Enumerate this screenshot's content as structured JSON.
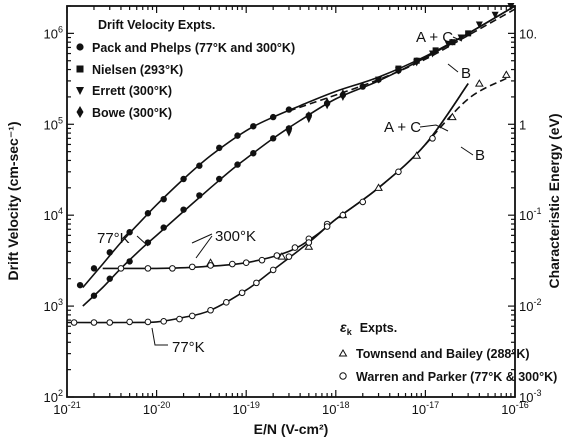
{
  "chart_data": {
    "type": "scatter",
    "x_axis": {
      "label": "E/N (V-cm²)",
      "scale": "log",
      "range": [
        1e-21,
        1e-16
      ],
      "ticks": [
        {
          "value": 1e-21,
          "mant": "10",
          "exp": "-21"
        },
        {
          "value": 1e-20,
          "mant": "10",
          "exp": "-20"
        },
        {
          "value": 1e-19,
          "mant": "10",
          "exp": "-19"
        },
        {
          "value": 1e-18,
          "mant": "10",
          "exp": "-18"
        },
        {
          "value": 1e-17,
          "mant": "10",
          "exp": "-17"
        },
        {
          "value": 1e-16,
          "mant": "10",
          "exp": "-16"
        }
      ]
    },
    "y_left": {
      "label": "Drift Velocity (cm-sec⁻¹)",
      "scale": "log",
      "range": [
        100,
        2000000
      ],
      "ticks": [
        {
          "value": 100,
          "mant": "10",
          "exp": "2"
        },
        {
          "value": 1000,
          "mant": "10",
          "exp": "3"
        },
        {
          "value": 10000,
          "mant": "10",
          "exp": "4"
        },
        {
          "value": 100000,
          "mant": "10",
          "exp": "5"
        },
        {
          "value": 1000000,
          "mant": "10",
          "exp": "6"
        }
      ]
    },
    "y_right": {
      "label": "Characteristic Energy (eV)",
      "scale": "log",
      "range": [
        0.001,
        20
      ],
      "ticks": [
        {
          "value": 0.001,
          "mant": "10",
          "exp": "-3"
        },
        {
          "value": 0.01,
          "mant": "10",
          "exp": "-2"
        },
        {
          "value": 0.1,
          "mant": "10",
          "exp": "-1"
        },
        {
          "value": 1,
          "mant": "1",
          "exp": ""
        },
        {
          "value": 10,
          "mant": "10.",
          "exp": ""
        }
      ]
    },
    "legend_drift": {
      "title": "Drift Velocity Expts.",
      "entries": [
        {
          "label": "Pack and Phelps (77°K and 300°K)",
          "marker": "circle-filled"
        },
        {
          "label": "Nielsen (293°K)",
          "marker": "square-filled"
        },
        {
          "label": "Errett (300°K)",
          "marker": "triangle-down-filled"
        },
        {
          "label": "Bowe (300°K)",
          "marker": "diamond-filled"
        }
      ]
    },
    "legend_energy": {
      "title_symbol": "ε",
      "title_sub": "k",
      "title_rest": "Expts.",
      "entries": [
        {
          "label": "Townsend and Bailey (288°K)",
          "marker": "triangle-open"
        },
        {
          "label": "Warren and Parker (77°K & 300°K)",
          "marker": "circle-open"
        }
      ]
    },
    "annotations": {
      "drift_77": "77°K",
      "drift_300": "300°K",
      "energy_77": "77°K",
      "a_plus_c_top": "A + C",
      "b_top": "B",
      "a_plus_c_mid": "A + C",
      "b_mid": "B"
    },
    "series": [
      {
        "name": "Drift velocity 77°K (A + C)",
        "axis": "left",
        "style": "solid",
        "x": [
          1.5e-21,
          2.5e-21,
          4e-21,
          7e-21,
          1e-20,
          2e-20,
          4e-20,
          1e-19,
          2e-19,
          4e-19,
          1e-18,
          3e-18,
          1e-17,
          3e-17,
          1e-16
        ],
        "y": [
          1600,
          2900,
          5000,
          9000,
          13000,
          25000,
          45000,
          85000,
          120000,
          160000,
          230000,
          330000,
          560000,
          1000000,
          2000000
        ]
      },
      {
        "name": "Drift velocity 300°K (A + C)",
        "axis": "left",
        "style": "solid",
        "x": [
          1.5e-21,
          2.5e-21,
          4e-21,
          7e-21,
          1e-20,
          2e-20,
          4e-20,
          7e-20,
          1e-19,
          2e-19,
          4e-19,
          1e-18,
          3e-18,
          1e-17,
          3e-17,
          1e-16
        ],
        "y": [
          1000,
          1600,
          2600,
          4400,
          6000,
          11000,
          20000,
          32000,
          42000,
          70000,
          110000,
          190000,
          300000,
          540000,
          1000000,
          2000000
        ]
      },
      {
        "name": "Drift velocity (B)",
        "axis": "left",
        "style": "dashed",
        "x": [
          3e-19,
          1e-18,
          3e-18,
          1e-17,
          3e-17,
          1e-16
        ],
        "y": [
          140000,
          210000,
          310000,
          520000,
          950000,
          1850000
        ]
      },
      {
        "name": "Characteristic energy 300°K",
        "axis": "right",
        "style": "solid",
        "x": [
          2.5e-21,
          1e-20,
          3e-20,
          1e-19,
          3e-19,
          6e-19,
          1e-18,
          3e-18,
          1e-17,
          3e-17
        ],
        "y": [
          0.026,
          0.026,
          0.027,
          0.03,
          0.04,
          0.06,
          0.09,
          0.2,
          0.6,
          2.8
        ]
      },
      {
        "name": "Characteristic energy 77°K",
        "axis": "right",
        "style": "solid",
        "x": [
          1e-21,
          5e-21,
          1e-20,
          2e-20,
          4e-20,
          1e-19,
          2e-19,
          5e-19,
          1e-18,
          3e-18,
          1e-17,
          3e-17
        ],
        "y": [
          0.0066,
          0.0066,
          0.0067,
          0.0075,
          0.009,
          0.015,
          0.025,
          0.05,
          0.09,
          0.2,
          0.6,
          2.8
        ]
      },
      {
        "name": "Characteristic energy (B)",
        "axis": "right",
        "style": "dashed",
        "x": [
          1e-17,
          3e-17,
          8e-17
        ],
        "y": [
          0.6,
          1.9,
          3.2
        ]
      }
    ],
    "points": {
      "pack_phelps_77": {
        "x": [
          1.4e-21,
          2e-21,
          3e-21,
          5e-21,
          8e-21,
          1.2e-20,
          2e-20,
          3e-20,
          5e-20,
          8e-20,
          1.2e-19,
          2e-19,
          3e-19
        ],
        "y": [
          1700,
          2600,
          3900,
          6500,
          10500,
          15000,
          25000,
          35000,
          55000,
          75000,
          95000,
          120000,
          145000
        ]
      },
      "pack_phelps_300": {
        "x": [
          2e-21,
          3e-21,
          5e-21,
          8e-21,
          1.2e-20,
          2e-20,
          3e-20,
          5e-20,
          8e-20,
          1.2e-19,
          2e-19,
          3e-19,
          5e-19,
          8e-19,
          1.2e-18,
          2e-18,
          3e-18,
          5e-18,
          8e-18
        ],
        "y": [
          1300,
          2000,
          3100,
          5000,
          7300,
          11500,
          16500,
          25000,
          36000,
          48000,
          70000,
          90000,
          125000,
          170000,
          210000,
          260000,
          310000,
          390000,
          500000
        ]
      },
      "nielsen": {
        "x": [
          5e-18,
          8e-18,
          1.3e-17,
          2e-17,
          3e-17
        ],
        "y": [
          410000,
          500000,
          650000,
          800000,
          1000000
        ]
      },
      "errett": {
        "x": [
          3e-18,
          5e-18,
          8e-18,
          1.2e-17,
          1.8e-17,
          2.5e-17,
          4e-17,
          6e-17,
          9e-17
        ],
        "y": [
          310000,
          390000,
          480000,
          600000,
          760000,
          900000,
          1250000,
          1600000,
          2000000
        ]
      },
      "bowe": {
        "x": [
          3e-19,
          5e-19,
          8e-19,
          1.2e-18
        ],
        "y": [
          85000,
          120000,
          170000,
          210000
        ]
      },
      "townsend_bailey": {
        "x": [
          4e-20,
          2.5e-19,
          5e-19,
          1.2e-18,
          3e-18,
          8e-18,
          2e-17,
          4e-17,
          8e-17
        ],
        "y": [
          0.03,
          0.035,
          0.045,
          0.1,
          0.2,
          0.45,
          1.2,
          2.8,
          3.5
        ]
      },
      "warren_parker_300": {
        "x": [
          4e-21,
          8e-21,
          1.5e-20,
          2.5e-20,
          4e-20,
          7e-20,
          1e-19,
          1.5e-19,
          2.2e-19,
          3.5e-19,
          5e-19,
          8e-19,
          1.2e-18,
          2e-18,
          5e-18,
          1.2e-17
        ],
        "y": [
          0.026,
          0.026,
          0.026,
          0.027,
          0.028,
          0.029,
          0.03,
          0.032,
          0.036,
          0.044,
          0.055,
          0.08,
          0.1,
          0.14,
          0.3,
          0.7
        ]
      },
      "warren_parker_77": {
        "x": [
          1.2e-21,
          2e-21,
          3e-21,
          5e-21,
          8e-21,
          1.2e-20,
          1.8e-20,
          2.5e-20,
          4e-20,
          6e-20,
          9e-20,
          1.3e-19,
          2e-19,
          3e-19,
          5e-19,
          8e-19
        ],
        "y": [
          0.0066,
          0.0066,
          0.0066,
          0.0067,
          0.0067,
          0.0068,
          0.0072,
          0.0078,
          0.009,
          0.011,
          0.014,
          0.018,
          0.025,
          0.035,
          0.05,
          0.075
        ]
      }
    }
  }
}
